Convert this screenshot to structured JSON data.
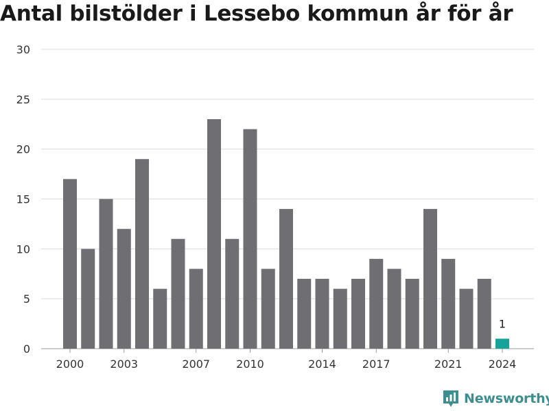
{
  "chart_data": {
    "type": "bar",
    "title": "Antal bilstölder i Lessebo kommun år för år",
    "xlabel": "",
    "ylabel": "",
    "categories": [
      "2000",
      "2001",
      "2002",
      "2003",
      "2004",
      "2005",
      "2006",
      "2007",
      "2008",
      "2009",
      "2010",
      "2011",
      "2012",
      "2013",
      "2014",
      "2015",
      "2016",
      "2017",
      "2018",
      "2019",
      "2020",
      "2021",
      "2022",
      "2023",
      "2024"
    ],
    "values": [
      17,
      10,
      15,
      12,
      19,
      6,
      11,
      8,
      23,
      11,
      22,
      8,
      14,
      7,
      7,
      6,
      7,
      9,
      8,
      7,
      14,
      9,
      6,
      7,
      1
    ],
    "ylim": [
      0,
      30
    ],
    "yticks": [
      0,
      5,
      10,
      15,
      20,
      25,
      30
    ],
    "xtick_labels": [
      "2000",
      "2003",
      "2007",
      "2010",
      "2014",
      "2017",
      "2021",
      "2024"
    ],
    "highlight": {
      "category": "2024",
      "label": "1"
    },
    "grid": true,
    "colors": {
      "bar": "#6f6e73",
      "highlight": "#16a39a",
      "grid": "#dcdcdc",
      "axis_text": "#333333"
    }
  },
  "branding": {
    "name": "Newsworthy",
    "color": "#3d8f8f"
  }
}
